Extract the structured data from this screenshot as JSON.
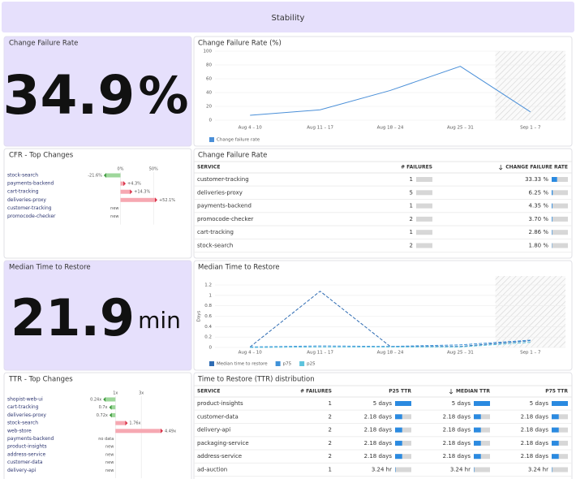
{
  "header": {
    "title": "Stability"
  },
  "kpis": [
    {
      "title": "Change Failure Rate",
      "value": 34.9,
      "unit": "%"
    },
    {
      "title": "Median Time to Restore",
      "value": 21.9,
      "unit": "min"
    }
  ],
  "chart_data": [
    {
      "type": "line",
      "title": "Change Failure Rate (%)",
      "categories": [
        "Aug 4 – 10",
        "Aug 11 – 17",
        "Aug 18 – 24",
        "Aug 25 – 31",
        "Sep 1 – 7"
      ],
      "series": [
        {
          "name": "Change failure rate",
          "color": "#4a8fd8",
          "values": [
            7,
            15,
            43,
            78,
            12
          ]
        }
      ],
      "ylim": [
        0,
        100
      ],
      "yticks": [
        0,
        20,
        40,
        60,
        80,
        100
      ],
      "grid": true,
      "legend": "bottom-left"
    },
    {
      "type": "bar",
      "orientation": "horizontal",
      "title": "CFR - Top Changes",
      "categories": [
        "stock-search",
        "payments-backend",
        "cart-tracking",
        "deliveries-proxy",
        "customer-tracking",
        "promocode-checker"
      ],
      "values": [
        -21.6,
        4.3,
        14.3,
        52.1,
        null,
        null
      ],
      "value_labels": [
        "-21.6%",
        "+4.3%",
        "+14.3%",
        "+52.1%",
        "new",
        "new"
      ],
      "xlim": [
        -35,
        100
      ],
      "xticks": [
        {
          "value": 0,
          "label": "0%"
        },
        {
          "value": 50,
          "label": "50%"
        }
      ],
      "baseline": 0,
      "colors": {
        "decrease": "#9ed79b",
        "increase": "#f6a8b2"
      }
    },
    {
      "type": "line",
      "title": "Median Time to Restore",
      "y_label": "Days",
      "line_style": "dashed",
      "categories": [
        "Aug 4 – 10",
        "Aug 11 – 17",
        "Aug 18 – 24",
        "Aug 25 – 31",
        "Sep 1 – 7"
      ],
      "series": [
        {
          "name": "Median time to restore",
          "color": "#2f6cb3",
          "values": [
            0.01,
            1.08,
            0.02,
            0.02,
            0.13
          ]
        },
        {
          "name": "p75",
          "color": "#3f92d9",
          "values": [
            0.01,
            0.03,
            0.02,
            0.05,
            0.14
          ]
        },
        {
          "name": "p25",
          "color": "#5cc3dd",
          "values": [
            0,
            0.01,
            0.01,
            0.01,
            0.1
          ]
        }
      ],
      "ylim": [
        0,
        1.2
      ],
      "yticks": [
        0,
        0.2,
        0.4,
        0.6,
        0.8,
        1,
        1.2
      ],
      "grid": true,
      "legend": "bottom-left"
    },
    {
      "type": "bar",
      "orientation": "horizontal",
      "title": "TTR - Top Changes",
      "categories": [
        "shopist-web-ui",
        "cart-tracking",
        "deliveries-proxy",
        "stock-search",
        "web-store",
        "payments-backend",
        "product-insights",
        "address-service",
        "customer-data",
        "delivery-api"
      ],
      "values": [
        0.24,
        0.7,
        0.72,
        1.76,
        4.49,
        null,
        null,
        null,
        null,
        null
      ],
      "value_labels": [
        "0.24x",
        "0.7x",
        "0.72x",
        "1.76x",
        "4.49x",
        "no data",
        "new",
        "new",
        "new",
        "new"
      ],
      "xlim": [
        -0.4,
        6.5
      ],
      "xticks": [
        {
          "value": 1,
          "label": "1x"
        },
        {
          "value": 3,
          "label": "3x"
        }
      ],
      "baseline": 1,
      "colors": {
        "decrease": "#9ed79b",
        "increase": "#f6a8b2"
      }
    }
  ],
  "tables": [
    {
      "title": "Change Failure Rate",
      "columns": [
        "SERVICE",
        "# FAILURES",
        "CHANGE FAILURE RATE"
      ],
      "sort_column": 2,
      "rows": [
        {
          "service": "customer-tracking",
          "failures": 1,
          "rate": 33.33,
          "rate_label": "33.33 %"
        },
        {
          "service": "deliveries-proxy",
          "failures": 5,
          "rate": 6.25,
          "rate_label": "6.25 %"
        },
        {
          "service": "payments-backend",
          "failures": 1,
          "rate": 4.35,
          "rate_label": "4.35 %"
        },
        {
          "service": "promocode-checker",
          "failures": 2,
          "rate": 3.7,
          "rate_label": "3.70 %"
        },
        {
          "service": "cart-tracking",
          "failures": 1,
          "rate": 2.86,
          "rate_label": "2.86 %"
        },
        {
          "service": "stock-search",
          "failures": 2,
          "rate": 1.8,
          "rate_label": "1.80 %"
        }
      ]
    },
    {
      "title": "Time to Restore (TTR) distribution",
      "columns": [
        "SERVICE",
        "# FAILURES",
        "P25 TTR",
        "MEDIAN TTR",
        "P75 TTR"
      ],
      "sort_column": 3,
      "rows": [
        {
          "service": "product-insights",
          "failures": 1,
          "p25": 5,
          "p25_label": "5 days",
          "median": 5,
          "median_label": "5 days",
          "p75": 5,
          "p75_label": "5 days"
        },
        {
          "service": "customer-data",
          "failures": 2,
          "p25": 2.18,
          "p25_label": "2.18 days",
          "median": 2.18,
          "median_label": "2.18 days",
          "p75": 2.18,
          "p75_label": "2.18 days"
        },
        {
          "service": "delivery-api",
          "failures": 2,
          "p25": 2.18,
          "p25_label": "2.18 days",
          "median": 2.18,
          "median_label": "2.18 days",
          "p75": 2.18,
          "p75_label": "2.18 days"
        },
        {
          "service": "packaging-service",
          "failures": 2,
          "p25": 2.18,
          "p25_label": "2.18 days",
          "median": 2.18,
          "median_label": "2.18 days",
          "p75": 2.18,
          "p75_label": "2.18 days"
        },
        {
          "service": "address-service",
          "failures": 2,
          "p25": 2.18,
          "p25_label": "2.18 days",
          "median": 2.18,
          "median_label": "2.18 days",
          "p75": 2.18,
          "p75_label": "2.18 days"
        },
        {
          "service": "ad-auction",
          "failures": 1,
          "p25": 0.135,
          "p25_label": "3.24 hr",
          "median": 0.135,
          "median_label": "3.24 hr",
          "p75": 0.135,
          "p75_label": "3.24 hr"
        }
      ]
    }
  ]
}
